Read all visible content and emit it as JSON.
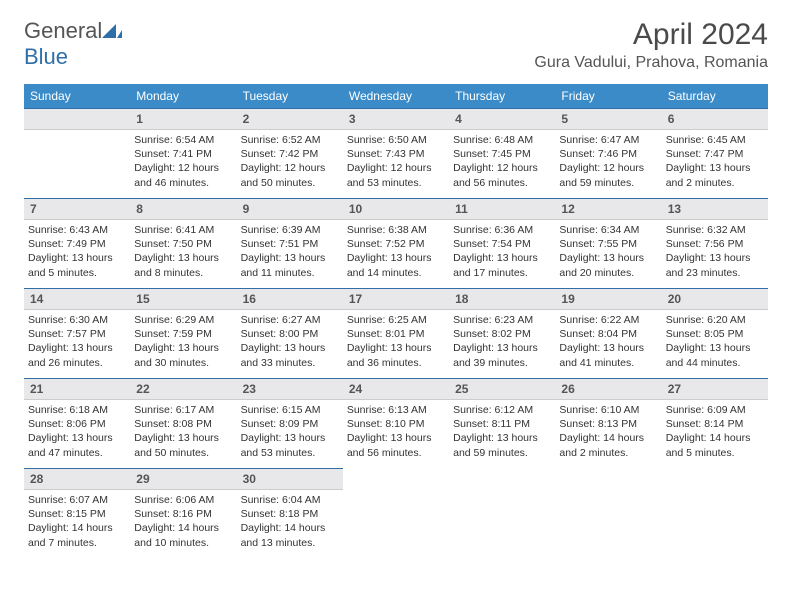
{
  "brand": {
    "word1": "General",
    "word2": "Blue"
  },
  "title": "April 2024",
  "location": "Gura Vadului, Prahova, Romania",
  "colors": {
    "header_bg": "#3b8bc8",
    "rule": "#2f6fa8",
    "daybg": "#e8e8ea",
    "text": "#333333"
  },
  "weekdays": [
    "Sunday",
    "Monday",
    "Tuesday",
    "Wednesday",
    "Thursday",
    "Friday",
    "Saturday"
  ],
  "weeks": [
    [
      {
        "day": "",
        "sunrise": "",
        "sunset": "",
        "daylight": ""
      },
      {
        "day": "1",
        "sunrise": "Sunrise: 6:54 AM",
        "sunset": "Sunset: 7:41 PM",
        "daylight": "Daylight: 12 hours and 46 minutes."
      },
      {
        "day": "2",
        "sunrise": "Sunrise: 6:52 AM",
        "sunset": "Sunset: 7:42 PM",
        "daylight": "Daylight: 12 hours and 50 minutes."
      },
      {
        "day": "3",
        "sunrise": "Sunrise: 6:50 AM",
        "sunset": "Sunset: 7:43 PM",
        "daylight": "Daylight: 12 hours and 53 minutes."
      },
      {
        "day": "4",
        "sunrise": "Sunrise: 6:48 AM",
        "sunset": "Sunset: 7:45 PM",
        "daylight": "Daylight: 12 hours and 56 minutes."
      },
      {
        "day": "5",
        "sunrise": "Sunrise: 6:47 AM",
        "sunset": "Sunset: 7:46 PM",
        "daylight": "Daylight: 12 hours and 59 minutes."
      },
      {
        "day": "6",
        "sunrise": "Sunrise: 6:45 AM",
        "sunset": "Sunset: 7:47 PM",
        "daylight": "Daylight: 13 hours and 2 minutes."
      }
    ],
    [
      {
        "day": "7",
        "sunrise": "Sunrise: 6:43 AM",
        "sunset": "Sunset: 7:49 PM",
        "daylight": "Daylight: 13 hours and 5 minutes."
      },
      {
        "day": "8",
        "sunrise": "Sunrise: 6:41 AM",
        "sunset": "Sunset: 7:50 PM",
        "daylight": "Daylight: 13 hours and 8 minutes."
      },
      {
        "day": "9",
        "sunrise": "Sunrise: 6:39 AM",
        "sunset": "Sunset: 7:51 PM",
        "daylight": "Daylight: 13 hours and 11 minutes."
      },
      {
        "day": "10",
        "sunrise": "Sunrise: 6:38 AM",
        "sunset": "Sunset: 7:52 PM",
        "daylight": "Daylight: 13 hours and 14 minutes."
      },
      {
        "day": "11",
        "sunrise": "Sunrise: 6:36 AM",
        "sunset": "Sunset: 7:54 PM",
        "daylight": "Daylight: 13 hours and 17 minutes."
      },
      {
        "day": "12",
        "sunrise": "Sunrise: 6:34 AM",
        "sunset": "Sunset: 7:55 PM",
        "daylight": "Daylight: 13 hours and 20 minutes."
      },
      {
        "day": "13",
        "sunrise": "Sunrise: 6:32 AM",
        "sunset": "Sunset: 7:56 PM",
        "daylight": "Daylight: 13 hours and 23 minutes."
      }
    ],
    [
      {
        "day": "14",
        "sunrise": "Sunrise: 6:30 AM",
        "sunset": "Sunset: 7:57 PM",
        "daylight": "Daylight: 13 hours and 26 minutes."
      },
      {
        "day": "15",
        "sunrise": "Sunrise: 6:29 AM",
        "sunset": "Sunset: 7:59 PM",
        "daylight": "Daylight: 13 hours and 30 minutes."
      },
      {
        "day": "16",
        "sunrise": "Sunrise: 6:27 AM",
        "sunset": "Sunset: 8:00 PM",
        "daylight": "Daylight: 13 hours and 33 minutes."
      },
      {
        "day": "17",
        "sunrise": "Sunrise: 6:25 AM",
        "sunset": "Sunset: 8:01 PM",
        "daylight": "Daylight: 13 hours and 36 minutes."
      },
      {
        "day": "18",
        "sunrise": "Sunrise: 6:23 AM",
        "sunset": "Sunset: 8:02 PM",
        "daylight": "Daylight: 13 hours and 39 minutes."
      },
      {
        "day": "19",
        "sunrise": "Sunrise: 6:22 AM",
        "sunset": "Sunset: 8:04 PM",
        "daylight": "Daylight: 13 hours and 41 minutes."
      },
      {
        "day": "20",
        "sunrise": "Sunrise: 6:20 AM",
        "sunset": "Sunset: 8:05 PM",
        "daylight": "Daylight: 13 hours and 44 minutes."
      }
    ],
    [
      {
        "day": "21",
        "sunrise": "Sunrise: 6:18 AM",
        "sunset": "Sunset: 8:06 PM",
        "daylight": "Daylight: 13 hours and 47 minutes."
      },
      {
        "day": "22",
        "sunrise": "Sunrise: 6:17 AM",
        "sunset": "Sunset: 8:08 PM",
        "daylight": "Daylight: 13 hours and 50 minutes."
      },
      {
        "day": "23",
        "sunrise": "Sunrise: 6:15 AM",
        "sunset": "Sunset: 8:09 PM",
        "daylight": "Daylight: 13 hours and 53 minutes."
      },
      {
        "day": "24",
        "sunrise": "Sunrise: 6:13 AM",
        "sunset": "Sunset: 8:10 PM",
        "daylight": "Daylight: 13 hours and 56 minutes."
      },
      {
        "day": "25",
        "sunrise": "Sunrise: 6:12 AM",
        "sunset": "Sunset: 8:11 PM",
        "daylight": "Daylight: 13 hours and 59 minutes."
      },
      {
        "day": "26",
        "sunrise": "Sunrise: 6:10 AM",
        "sunset": "Sunset: 8:13 PM",
        "daylight": "Daylight: 14 hours and 2 minutes."
      },
      {
        "day": "27",
        "sunrise": "Sunrise: 6:09 AM",
        "sunset": "Sunset: 8:14 PM",
        "daylight": "Daylight: 14 hours and 5 minutes."
      }
    ],
    [
      {
        "day": "28",
        "sunrise": "Sunrise: 6:07 AM",
        "sunset": "Sunset: 8:15 PM",
        "daylight": "Daylight: 14 hours and 7 minutes."
      },
      {
        "day": "29",
        "sunrise": "Sunrise: 6:06 AM",
        "sunset": "Sunset: 8:16 PM",
        "daylight": "Daylight: 14 hours and 10 minutes."
      },
      {
        "day": "30",
        "sunrise": "Sunrise: 6:04 AM",
        "sunset": "Sunset: 8:18 PM",
        "daylight": "Daylight: 14 hours and 13 minutes."
      },
      {
        "day": "",
        "sunrise": "",
        "sunset": "",
        "daylight": ""
      },
      {
        "day": "",
        "sunrise": "",
        "sunset": "",
        "daylight": ""
      },
      {
        "day": "",
        "sunrise": "",
        "sunset": "",
        "daylight": ""
      },
      {
        "day": "",
        "sunrise": "",
        "sunset": "",
        "daylight": ""
      }
    ]
  ]
}
